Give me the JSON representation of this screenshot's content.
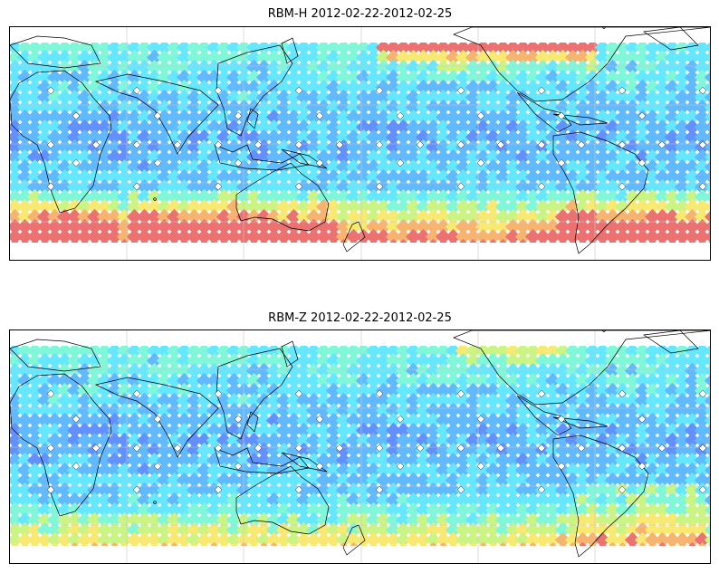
{
  "panels": [
    {
      "title": "RBM-H 2012-02-22-2012-02-25",
      "variant": "h"
    },
    {
      "title": "RBM-Z 2012-02-22-2012-02-25",
      "variant": "z"
    }
  ],
  "colormap": [
    "#6a6afc",
    "#5a8cff",
    "#59b6ff",
    "#5ce6ff",
    "#7af7d8",
    "#c8f57e",
    "#f8e86c",
    "#f7b06a",
    "#ec6a6a"
  ],
  "coastline_color": "#000000",
  "grid_color": "#c8c8c8",
  "grid_meridians": true,
  "grid_parallels": true
}
